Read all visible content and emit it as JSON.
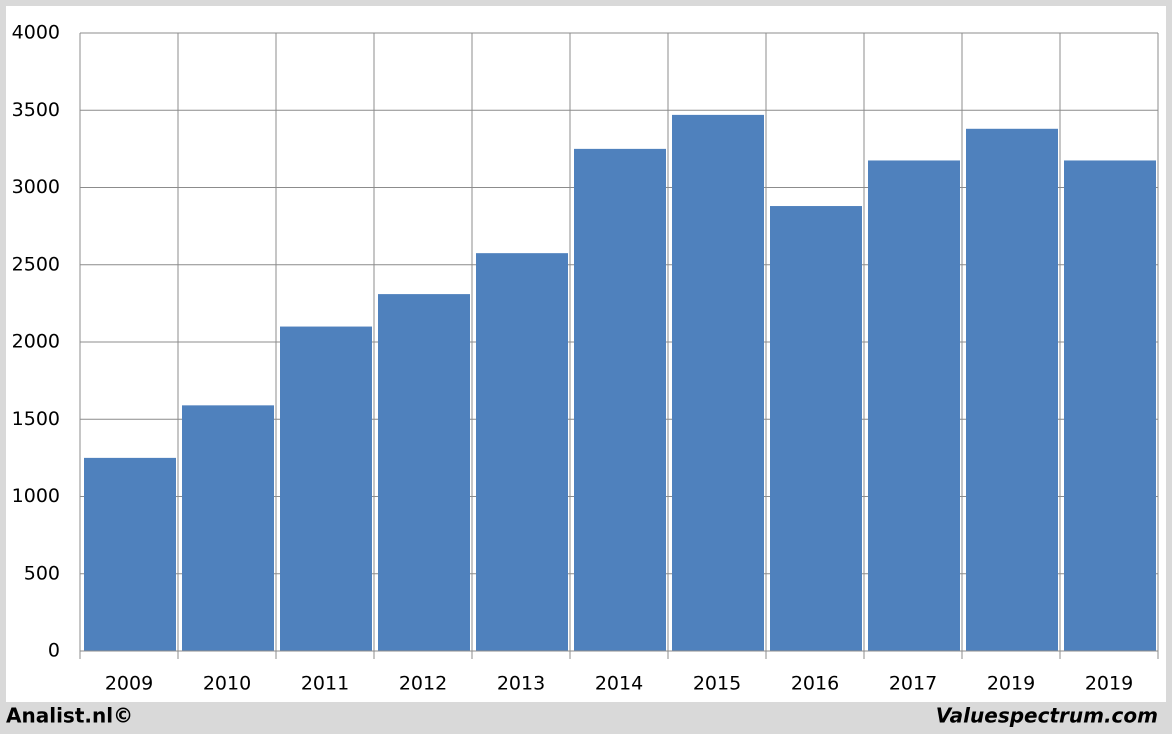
{
  "chart_data": {
    "type": "bar",
    "categories": [
      "2009",
      "2010",
      "2011",
      "2012",
      "2013",
      "2014",
      "2015",
      "2016",
      "2017",
      "2019",
      "2019"
    ],
    "values": [
      1250,
      1590,
      2100,
      2310,
      2575,
      3250,
      3470,
      2880,
      3175,
      3380,
      3175
    ],
    "color": "#4f81bd",
    "ylim": [
      0,
      4000
    ],
    "yticks": [
      0,
      500,
      1000,
      1500,
      2000,
      2500,
      3000,
      3500,
      4000
    ],
    "grid": true
  },
  "footer": {
    "left": "Analist.nl©",
    "right": "Valuespectrum.com"
  }
}
